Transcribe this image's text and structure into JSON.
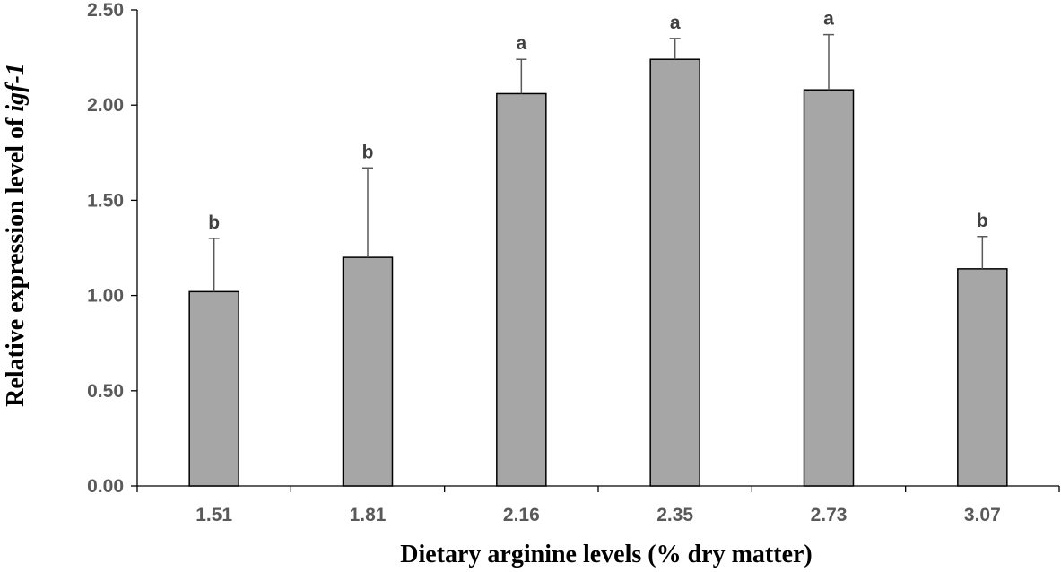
{
  "chart_data": {
    "type": "bar",
    "title": "",
    "xlabel": "Dietary arginine levels (% dry matter)",
    "ylabel_main": "Relative expression level of ",
    "ylabel_gene": "igf-1",
    "categories": [
      "1.51",
      "1.81",
      "2.16",
      "2.35",
      "2.73",
      "3.07"
    ],
    "values": [
      1.02,
      1.2,
      2.06,
      2.24,
      2.08,
      1.14
    ],
    "errors": [
      0.28,
      0.47,
      0.18,
      0.11,
      0.29,
      0.17
    ],
    "significance": [
      "b",
      "b",
      "a",
      "a",
      "a",
      "b"
    ],
    "yticks": [
      "0.00",
      "0.50",
      "1.00",
      "1.50",
      "2.00",
      "2.50"
    ],
    "ylim": [
      0,
      2.5
    ],
    "grid": false,
    "legend": "none",
    "bar_color": "#a6a6a6"
  }
}
